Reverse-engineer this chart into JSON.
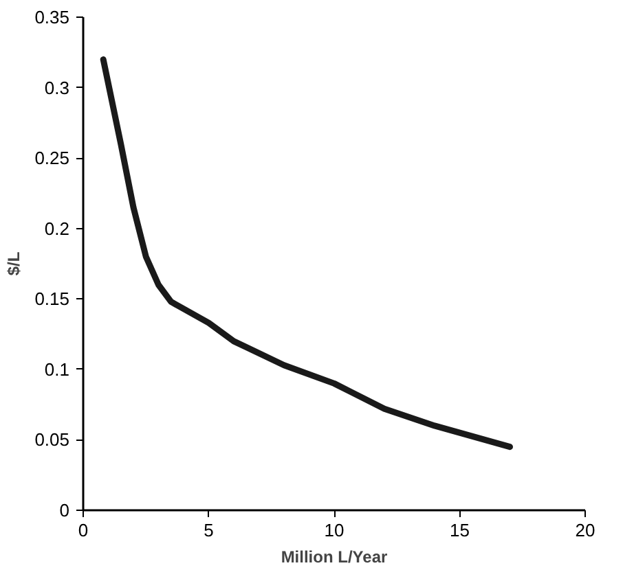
{
  "chart_data": {
    "type": "line",
    "xlabel": "Million L/Year",
    "ylabel": "$/L",
    "x": [
      0.8,
      1.5,
      2,
      2.5,
      3,
      3.5,
      5,
      6,
      8,
      10,
      12,
      14,
      17
    ],
    "series": [
      {
        "color": "#1a1a1a",
        "values": [
          0.32,
          0.26,
          0.215,
          0.18,
          0.16,
          0.148,
          0.133,
          0.12,
          0.103,
          0.09,
          0.072,
          0.06,
          0.045
        ]
      }
    ],
    "xlim": [
      0,
      20
    ],
    "xticks": [
      0,
      5,
      10,
      15,
      20
    ],
    "ylim": [
      0,
      0.35
    ],
    "yticks": [
      0,
      0.05,
      0.1,
      0.15,
      0.2,
      0.25,
      0.3,
      0.35
    ],
    "grid": false,
    "marker": "none",
    "line_style": "solid"
  }
}
